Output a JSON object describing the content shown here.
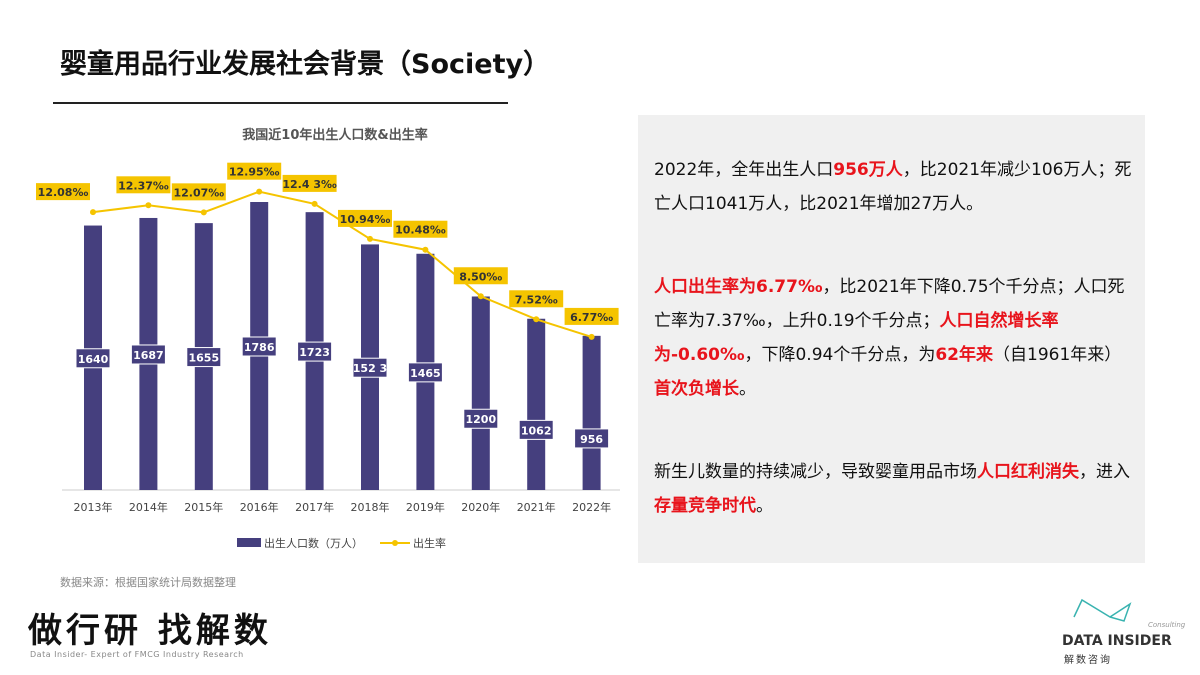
{
  "header": {
    "title": "婴童用品行业发展社会背景（Society）"
  },
  "chart_data": {
    "type": "bar+line",
    "title": "我国近10年出生人口数&出生率",
    "categories": [
      "2013年",
      "2014年",
      "2015年",
      "2016年",
      "2017年",
      "2018年",
      "2019年",
      "2020年",
      "2021年",
      "2022年"
    ],
    "series": [
      {
        "name": "出生人口数（万人）",
        "type": "bar",
        "color": "#453f7e",
        "values": [
          1640,
          1687,
          1655,
          1786,
          1723,
          1523,
          1465,
          1200,
          1062,
          956
        ],
        "labels": [
          "1640",
          "1687",
          "1655",
          "1786",
          "1723",
          "152 3",
          "1465",
          "1200",
          "1062",
          "956"
        ]
      },
      {
        "name": "出生率",
        "type": "line",
        "color": "#f5c400",
        "values": [
          12.08,
          12.37,
          12.07,
          12.95,
          12.43,
          10.94,
          10.48,
          8.5,
          7.52,
          6.77
        ],
        "labels": [
          "12.08‰",
          "12.37‰",
          "12.07‰",
          "12.95‰",
          "12.4 3‰",
          "10.94‰",
          "10.48‰",
          "8.50‰",
          "7.52‰",
          "6.77‰"
        ]
      }
    ],
    "legend_position": "bottom",
    "grid": false
  },
  "panel": {
    "p1": [
      "2022年，全年出生人口",
      "956万人",
      "，比2021年减少106万人；死亡人口1041万人，比2021年增加27万人。"
    ],
    "p2": [
      "人口出生率为6.77‰",
      "，比2021年下降0.75个千分点；人口死亡率为7.37‰，上升0.19个千分点；",
      "人口自然增长率为-0.60‰",
      "，下降0.94个千分点，为",
      "62年来",
      "（自1961年来）",
      "首次负增长",
      "。"
    ],
    "p3": [
      "新生儿数量的持续减少，导致婴童用品市场",
      "人口红利消失",
      "，进入",
      "存量竞争时代",
      "。"
    ]
  },
  "footer": {
    "source": "数据来源：根据国家统计局数据整理",
    "slogan": "做行研 找解数",
    "slogan_sub": "Data Insider- Expert of FMCG Industry Research",
    "logo_name": "DATA INSIDER",
    "logo_cn": "解数咨询",
    "logo_consulting": "Consulting"
  }
}
